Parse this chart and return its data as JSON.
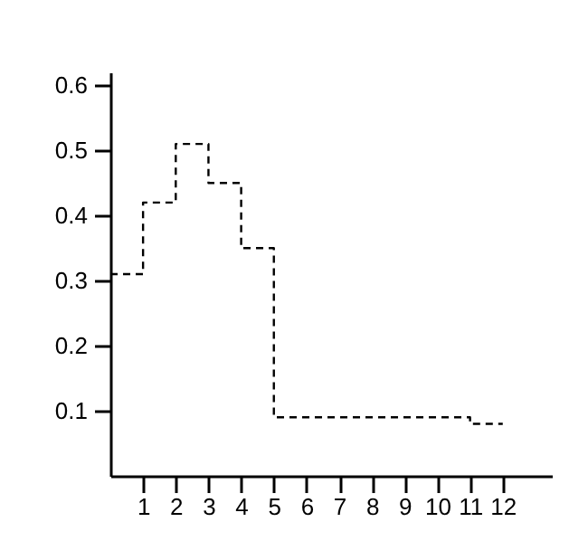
{
  "chart_data": {
    "type": "step",
    "x": [
      0,
      1,
      2,
      3,
      4,
      5,
      11,
      12
    ],
    "values": [
      0.31,
      0.42,
      0.51,
      0.45,
      0.35,
      0.09,
      0.08,
      0.08
    ],
    "color": "#000000",
    "line_style": "dashed",
    "xlim": [
      0,
      13.5
    ],
    "xticks": [
      1,
      2,
      3,
      4,
      5,
      6,
      7,
      8,
      9,
      10,
      11,
      12
    ],
    "ylim": [
      0,
      0.62
    ],
    "yticks": [
      0.1,
      0.2,
      0.3,
      0.4,
      0.5,
      0.6
    ],
    "grid": false
  }
}
